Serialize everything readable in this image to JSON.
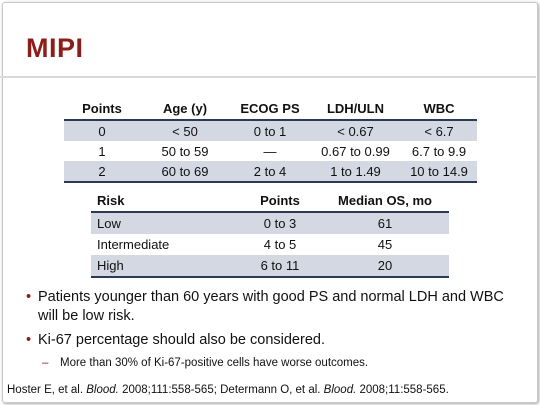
{
  "slide": {
    "title": "MIPI"
  },
  "table1": {
    "headers": [
      "Points",
      "Age (y)",
      "ECOG PS",
      "LDH/ULN",
      "WBC"
    ],
    "rows": [
      [
        "0",
        "< 50",
        "0 to 1",
        "< 0.67",
        "< 6.7"
      ],
      [
        "1",
        "50 to 59",
        "—",
        "0.67 to 0.99",
        "6.7 to 9.9"
      ],
      [
        "2",
        "60 to 69",
        "2 to 4",
        "1 to 1.49",
        "10 to 14.9"
      ]
    ]
  },
  "table2": {
    "headers": [
      "Risk",
      "Points",
      "Median OS, mo"
    ],
    "rows": [
      [
        "Low",
        "0 to 3",
        "61"
      ],
      [
        "Intermediate",
        "4 to 5",
        "45"
      ],
      [
        "High",
        "6 to 11",
        "20"
      ]
    ]
  },
  "bullets": [
    "Patients younger than 60 years with good PS and normal LDH and WBC will be low risk.",
    "Ki-67 percentage should also be considered."
  ],
  "sub_bullet": "More than 30% of Ki-67-positive cells have worse outcomes.",
  "reference": {
    "part1": "Hoster E, et al. ",
    "journal1": "Blood.",
    "part2": " 2008;111:558-565; Determann O, et al. ",
    "journal2": "Blood.",
    "part3": " 2008;11:558-565."
  },
  "colors": {
    "title": "#8c1d18",
    "row_shade": "#d3d8e3",
    "rule": "#2b3a55"
  }
}
